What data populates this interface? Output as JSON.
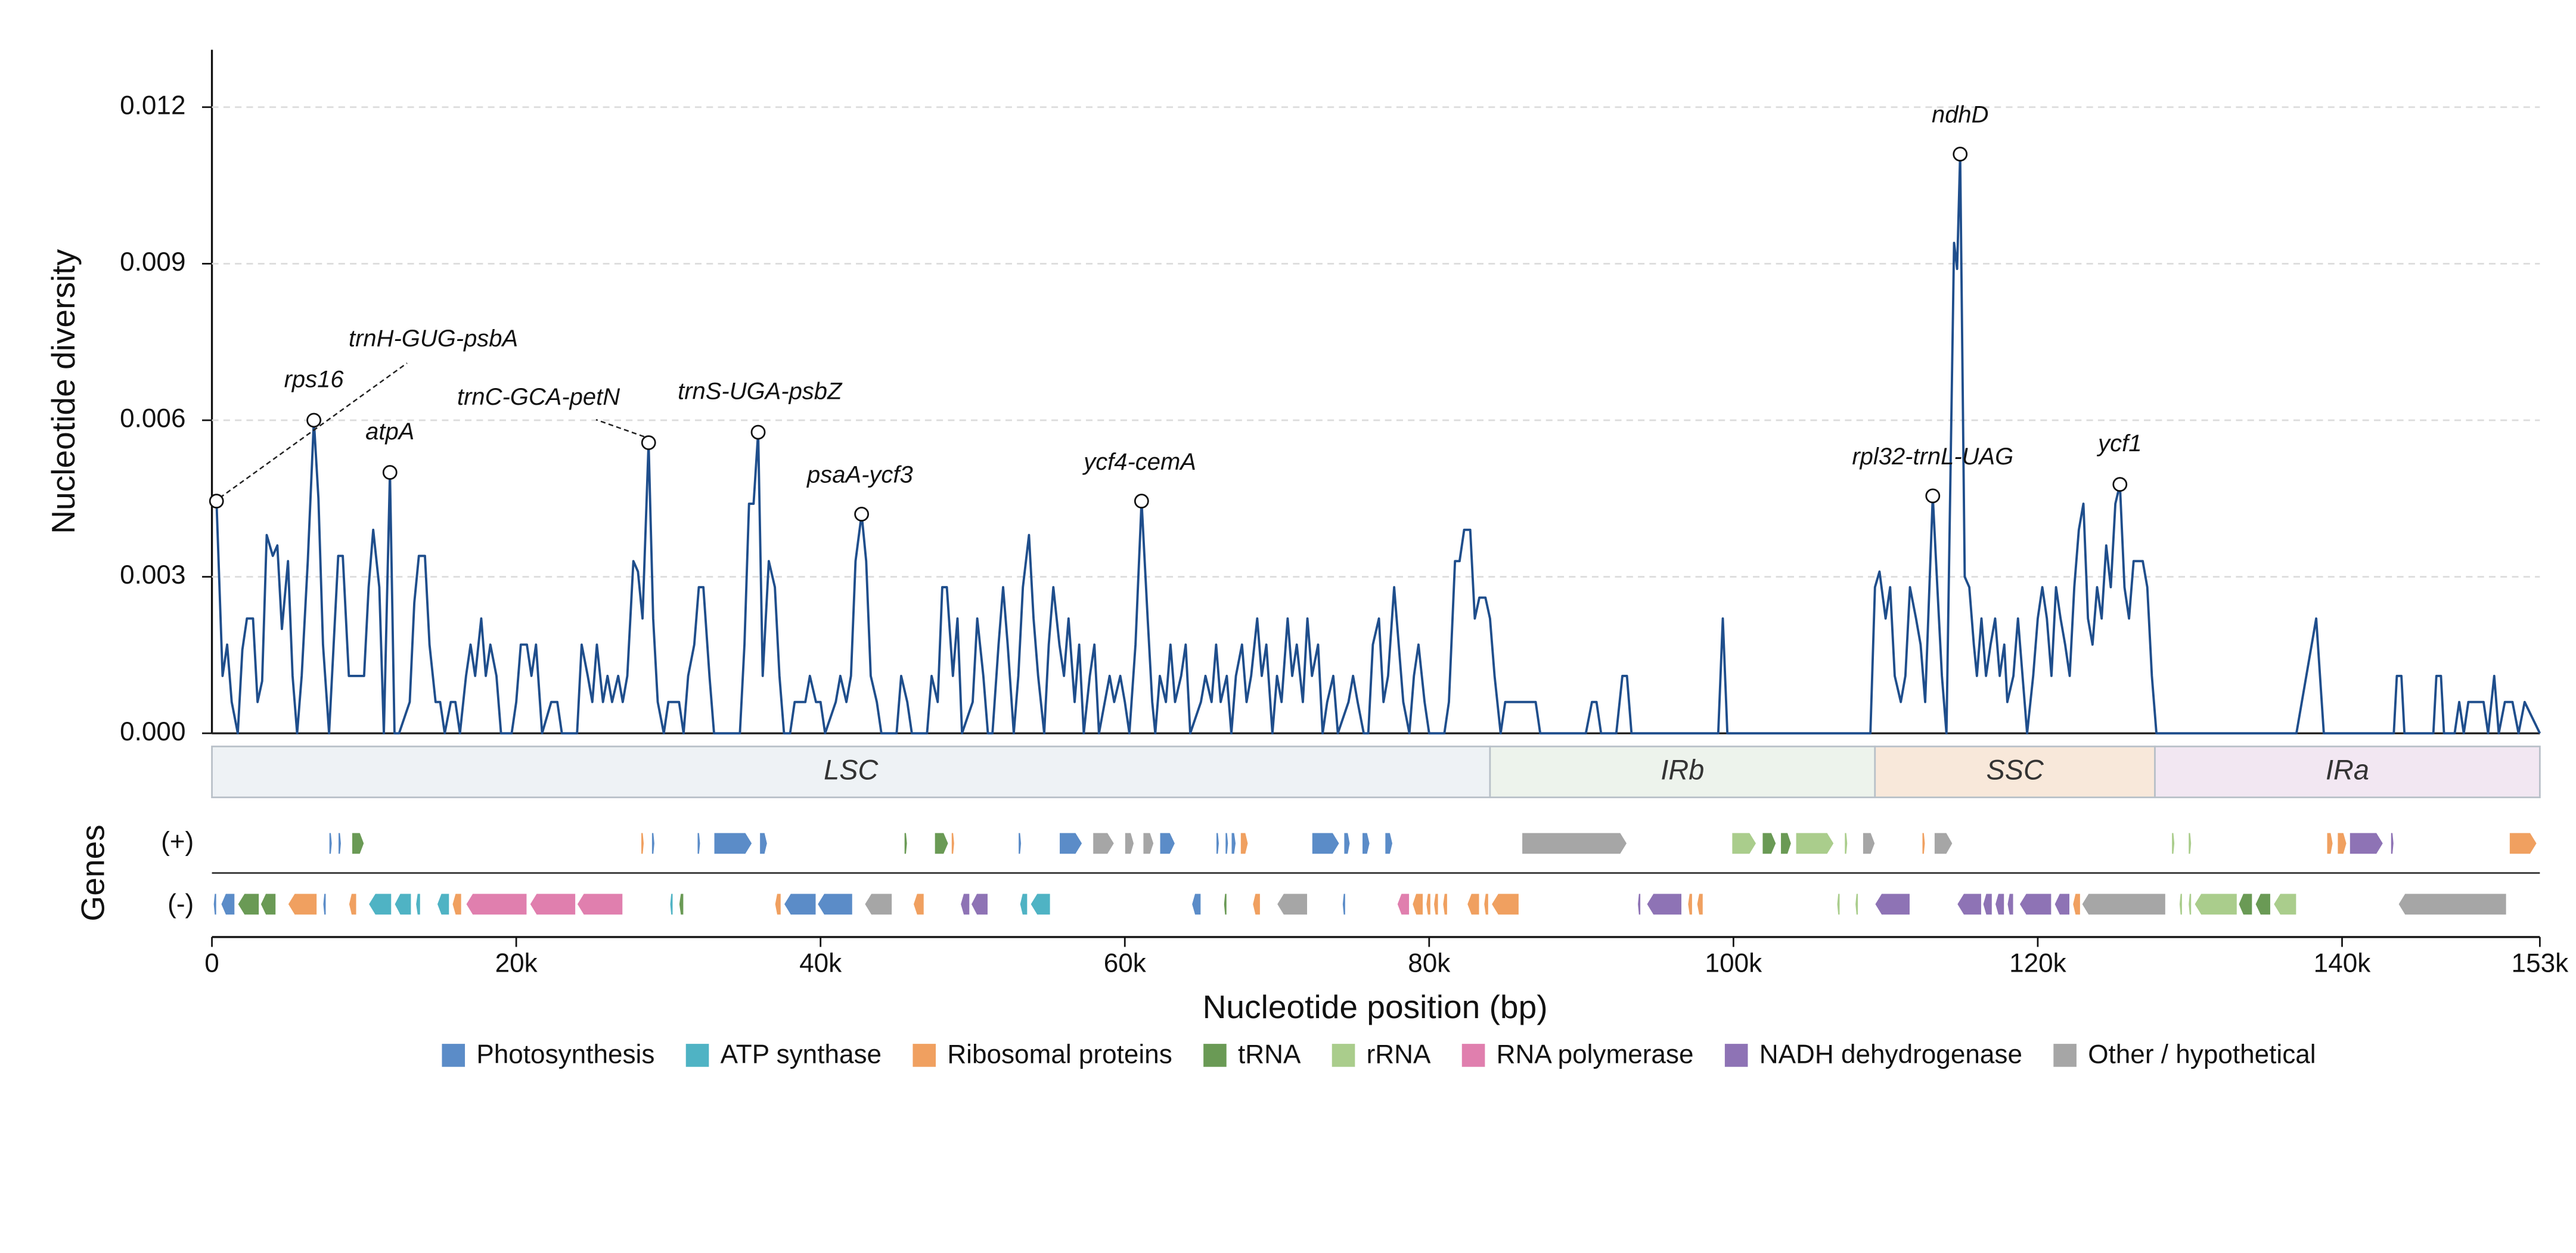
{
  "chart_data": {
    "type": "line",
    "y_label": "Nucleotide diversity",
    "x_label": "Nucleotide position (bp)",
    "track_label": "Genes",
    "strand_labels": {
      "plus": "(+)",
      "minus": "(-)"
    },
    "xlim": [
      0,
      153000
    ],
    "xticks": [
      0,
      {
        "value": 20000,
        "label": "20k"
      },
      {
        "value": 40000,
        "label": "40k"
      },
      {
        "value": 60000,
        "label": "60k"
      },
      {
        "value": 80000,
        "label": "80k"
      },
      {
        "value": 100000,
        "label": "100k"
      },
      {
        "value": 120000,
        "label": "120k"
      },
      {
        "value": 140000,
        "label": "140k"
      },
      {
        "value": 153000,
        "label": "153k"
      }
    ],
    "ylim": [
      0,
      0.0131
    ],
    "yticks": [
      {
        "value": 0,
        "label": "0.000"
      },
      0.003,
      0.006,
      0.009,
      0.012
    ],
    "grid": true,
    "color": "#1f4e8c",
    "x": [
      0,
      300,
      700,
      1000,
      1300,
      1700,
      2000,
      2300,
      2700,
      3000,
      3300,
      3600,
      4000,
      4300,
      4600,
      5000,
      5300,
      5600,
      5900,
      6300,
      6700,
      7000,
      7300,
      7700,
      8000,
      8300,
      8600,
      9000,
      9300,
      10000,
      10300,
      10600,
      11000,
      11300,
      11700,
      12000,
      12300,
      13000,
      13300,
      13600,
      14000,
      14300,
      14700,
      15000,
      15300,
      15700,
      16000,
      16300,
      16700,
      17000,
      17300,
      17700,
      18000,
      18300,
      18700,
      19000,
      19700,
      20000,
      20300,
      20700,
      21000,
      21300,
      21700,
      22300,
      22700,
      23000,
      24000,
      24300,
      24700,
      25000,
      25300,
      25700,
      26000,
      26300,
      26700,
      27000,
      27300,
      27700,
      28000,
      28300,
      28700,
      29000,
      29300,
      29700,
      30000,
      30700,
      31000,
      31300,
      31700,
      32000,
      32300,
      32700,
      33000,
      34700,
      35000,
      35300,
      35600,
      35900,
      36200,
      36600,
      37000,
      37300,
      37600,
      38000,
      38300,
      39000,
      39300,
      39700,
      40000,
      40300,
      41000,
      41300,
      41700,
      42000,
      42300,
      42700,
      43000,
      43300,
      43700,
      44000,
      45000,
      45300,
      45700,
      46000,
      47000,
      47300,
      47700,
      48000,
      48300,
      48700,
      49000,
      49300,
      50000,
      50300,
      50700,
      51000,
      51300,
      51700,
      52000,
      52300,
      52700,
      53000,
      53300,
      53700,
      54000,
      54300,
      54700,
      55000,
      55300,
      55700,
      56000,
      56300,
      56700,
      57000,
      57300,
      57700,
      58000,
      58300,
      59000,
      59300,
      59700,
      60000,
      60300,
      60700,
      61100,
      61500,
      61800,
      62000,
      62300,
      62700,
      63000,
      63300,
      63700,
      64000,
      64300,
      65000,
      65300,
      65700,
      66000,
      66300,
      66700,
      67000,
      67300,
      67700,
      68000,
      68300,
      68700,
      69000,
      69300,
      69700,
      70000,
      70300,
      70700,
      71000,
      71300,
      71700,
      72000,
      72300,
      72700,
      73000,
      73300,
      73700,
      74000,
      74700,
      75000,
      75300,
      75700,
      76000,
      76300,
      76700,
      77000,
      77300,
      77700,
      78000,
      78300,
      78700,
      79000,
      79300,
      79700,
      80000,
      81000,
      81300,
      81700,
      82000,
      82300,
      82700,
      83000,
      83300,
      83700,
      84000,
      84300,
      84700,
      85000,
      87000,
      87300,
      90300,
      90700,
      91000,
      91300,
      92300,
      92700,
      93000,
      93300,
      99000,
      99300,
      99600,
      109000,
      109300,
      109600,
      110000,
      110300,
      110600,
      111000,
      111300,
      111600,
      112000,
      112300,
      112600,
      113100,
      113400,
      113700,
      114000,
      114500,
      114700,
      114900,
      115200,
      115500,
      115800,
      116000,
      116300,
      116600,
      116900,
      117200,
      117500,
      117800,
      118000,
      118400,
      118700,
      119000,
      119300,
      119700,
      120000,
      120300,
      120600,
      120900,
      121200,
      121500,
      121800,
      122100,
      122400,
      122700,
      123000,
      123300,
      123600,
      123900,
      124200,
      124500,
      124800,
      125100,
      125400,
      125700,
      126000,
      126300,
      126600,
      126900,
      127200,
      127500,
      127800,
      137000,
      138300,
      138800,
      143400,
      143600,
      143900,
      144100,
      146000,
      146200,
      146500,
      146700,
      147400,
      147700,
      148000,
      148300,
      149300,
      149600,
      150000,
      150300,
      150700,
      151200,
      151600,
      152000,
      153000
    ],
    "values": [
      0.0045,
      0.00445,
      0.0011,
      0.0017,
      0.0006,
      0,
      0.0016,
      0.0022,
      0.0022,
      0.0006,
      0.001,
      0.0038,
      0.0034,
      0.0036,
      0.002,
      0.0033,
      0.0011,
      0,
      0.0011,
      0.0033,
      0.006,
      0.0045,
      0.0017,
      0,
      0.0017,
      0.0034,
      0.0034,
      0.0011,
      0.0011,
      0.0011,
      0.0028,
      0.0039,
      0.0028,
      0,
      0.005,
      0,
      0,
      0.0006,
      0.0025,
      0.0034,
      0.0034,
      0.0017,
      0.0006,
      0.0006,
      0,
      0.0006,
      0.0006,
      0,
      0.0011,
      0.0017,
      0.0011,
      0.0022,
      0.0011,
      0.0017,
      0.0011,
      0,
      0,
      0.0006,
      0.0017,
      0.0017,
      0.0011,
      0.0017,
      0,
      0.0006,
      0.0006,
      0,
      0,
      0.0017,
      0.0011,
      0.0006,
      0.0017,
      0.0006,
      0.0011,
      0.0006,
      0.0011,
      0.0006,
      0.0011,
      0.0033,
      0.0031,
      0.0022,
      0.00557,
      0.0022,
      0.0006,
      0,
      0.0006,
      0.0006,
      0,
      0.0011,
      0.0017,
      0.0028,
      0.0028,
      0.0011,
      0,
      0,
      0.0017,
      0.0044,
      0.0044,
      0.00577,
      0.0011,
      0.0033,
      0.0028,
      0.0011,
      0,
      0,
      0.0006,
      0.0006,
      0.0011,
      0.0006,
      0.0006,
      0,
      0.0006,
      0.0011,
      0.0006,
      0.0011,
      0.0033,
      0.0042,
      0.0033,
      0.0011,
      0.0006,
      0,
      0,
      0.0011,
      0.0006,
      0,
      0,
      0.0011,
      0.0006,
      0.0028,
      0.0028,
      0.0011,
      0.0022,
      0,
      0.0006,
      0.0022,
      0.0011,
      0,
      0,
      0.0017,
      0.0028,
      0.0017,
      0,
      0.0011,
      0.0028,
      0.0038,
      0.0022,
      0.0011,
      0,
      0.0017,
      0.0028,
      0.0017,
      0.0011,
      0.0022,
      0.0006,
      0.0017,
      0,
      0.0011,
      0.0017,
      0,
      0.0011,
      0.0006,
      0.0011,
      0.0006,
      0,
      0.0017,
      0.00445,
      0.0022,
      0.0006,
      0,
      0.0011,
      0.0006,
      0.0017,
      0.0006,
      0.0011,
      0.0017,
      0,
      0.0006,
      0.0011,
      0.0006,
      0.0017,
      0.0006,
      0.0011,
      0,
      0.0011,
      0.0017,
      0.0006,
      0.0011,
      0.0022,
      0.0011,
      0.0017,
      0,
      0.0011,
      0.0006,
      0.0022,
      0.0011,
      0.0017,
      0.0006,
      0.0022,
      0.0011,
      0.0017,
      0,
      0.0006,
      0.0011,
      0,
      0.0006,
      0.0011,
      0.0006,
      0,
      0,
      0.0017,
      0.0022,
      0.0006,
      0.0011,
      0.0028,
      0.0017,
      0.0006,
      0,
      0.0011,
      0.0017,
      0.0006,
      0,
      0,
      0.0006,
      0.0033,
      0.0033,
      0.0039,
      0.0039,
      0.0022,
      0.0026,
      0.0026,
      0.0022,
      0.0011,
      0,
      0.0006,
      0.0006,
      0,
      0,
      0.0006,
      0.0006,
      0,
      0,
      0.0011,
      0.0011,
      0,
      0,
      0.0022,
      0,
      0,
      0.0028,
      0.0031,
      0.0022,
      0.0028,
      0.0011,
      0.0006,
      0.0011,
      0.0028,
      0.0022,
      0.0017,
      0.0006,
      0.00455,
      0.0028,
      0.0011,
      0,
      0.0094,
      0.0089,
      0.0111,
      0.003,
      0.0028,
      0.0017,
      0.0011,
      0.0022,
      0.0011,
      0.0017,
      0.0022,
      0.0011,
      0.0017,
      0.0006,
      0.0011,
      0.0022,
      0.0011,
      0,
      0.0011,
      0.0022,
      0.0028,
      0.0022,
      0.0011,
      0.0028,
      0.0022,
      0.0017,
      0.0011,
      0.0028,
      0.0039,
      0.0044,
      0.0022,
      0.0017,
      0.0028,
      0.0022,
      0.0036,
      0.0028,
      0.0044,
      0.00477,
      0.0028,
      0.0022,
      0.0033,
      0.0033,
      0.0033,
      0.0028,
      0.0011,
      0,
      0,
      0.0022,
      0,
      0,
      0.0011,
      0.0011,
      0,
      0,
      0.0011,
      0.0011,
      0,
      0,
      0.0006,
      0,
      0.0006,
      0.0006,
      0,
      0.0011,
      0,
      0.0006,
      0.0006,
      0,
      0.0006,
      0
    ],
    "peaks": [
      {
        "label": "trnH-GUG-psbA",
        "x": 300,
        "y": 0.00445
      },
      {
        "label": "rps16",
        "x": 6700,
        "y": 0.006
      },
      {
        "label": "atpA",
        "x": 11700,
        "y": 0.005
      },
      {
        "label": "trnC-GCA-petN",
        "x": 28700,
        "y": 0.00557
      },
      {
        "label": "trnS-UGA-psbZ",
        "x": 35900,
        "y": 0.00577
      },
      {
        "label": "psaA-ycf3",
        "x": 42700,
        "y": 0.0042
      },
      {
        "label": "ycf4-cemA",
        "x": 61100,
        "y": 0.00445
      },
      {
        "label": "ndhD",
        "x": 114900,
        "y": 0.0111
      },
      {
        "label": "rpl32-trnL-UAG",
        "x": 113100,
        "y": 0.00455
      },
      {
        "label": "ycf1",
        "x": 125400,
        "y": 0.00477
      }
    ],
    "regions": [
      {
        "name": "LSC",
        "start": 0,
        "end": 84000,
        "color": "#eef2f5"
      },
      {
        "name": "IRb",
        "start": 84000,
        "end": 109300,
        "color": "#edf3ec"
      },
      {
        "name": "SSC",
        "start": 109300,
        "end": 127700,
        "color": "#f8e8da"
      },
      {
        "name": "IRa",
        "start": 127700,
        "end": 153000,
        "color": "#f2e7f2"
      }
    ],
    "gene_categories": [
      {
        "name": "Photosynthesis",
        "color": "#5b8cc8"
      },
      {
        "name": "ATP synthase",
        "color": "#4fb3c4"
      },
      {
        "name": "Ribosomal proteins",
        "color": "#f0a060"
      },
      {
        "name": "tRNA",
        "color": "#6a9a55"
      },
      {
        "name": "rRNA",
        "color": "#aacd8c"
      },
      {
        "name": "RNA polymerase",
        "color": "#e07fae"
      },
      {
        "name": "NADH dehydrogenase",
        "color": "#8e73b5"
      },
      {
        "name": "Other / hypothetical",
        "color": "#a6a6a6"
      }
    ],
    "genes": {
      "plus": [
        [
          7700,
          7900,
          0
        ],
        [
          8300,
          8500,
          0
        ],
        [
          9200,
          10000,
          3
        ],
        [
          28200,
          28400,
          2
        ],
        [
          28900,
          29100,
          0
        ],
        [
          31900,
          32100,
          0
        ],
        [
          33000,
          35500,
          0
        ],
        [
          36000,
          36500,
          0
        ],
        [
          45500,
          45700,
          3
        ],
        [
          47500,
          48400,
          3
        ],
        [
          48600,
          48800,
          2
        ],
        [
          53000,
          53200,
          0
        ],
        [
          55700,
          57200,
          0
        ],
        [
          57900,
          59300,
          7
        ],
        [
          60000,
          60600,
          7
        ],
        [
          61200,
          61900,
          7
        ],
        [
          62300,
          63300,
          0
        ],
        [
          66000,
          66200,
          0
        ],
        [
          66600,
          66800,
          0
        ],
        [
          67000,
          67300,
          0
        ],
        [
          67600,
          68100,
          2
        ],
        [
          72300,
          74100,
          0
        ],
        [
          74400,
          74800,
          0
        ],
        [
          75600,
          76100,
          0
        ],
        [
          77100,
          77600,
          0
        ],
        [
          86100,
          93000,
          7
        ],
        [
          99900,
          101500,
          4
        ],
        [
          101900,
          102800,
          3
        ],
        [
          103100,
          103800,
          3
        ],
        [
          104100,
          106600,
          4
        ],
        [
          107300,
          107500,
          4
        ],
        [
          108500,
          109300,
          7
        ],
        [
          112400,
          112600,
          2
        ],
        [
          113200,
          114400,
          7
        ],
        [
          128800,
          129000,
          4
        ],
        [
          129900,
          130100,
          4
        ],
        [
          139000,
          139400,
          2
        ],
        [
          139700,
          140300,
          2
        ],
        [
          140500,
          142700,
          6
        ],
        [
          143200,
          143400,
          6
        ],
        [
          151000,
          152800,
          2
        ]
      ],
      "minus": [
        [
          100,
          300,
          0
        ],
        [
          600,
          1500,
          0
        ],
        [
          1700,
          3100,
          3
        ],
        [
          3200,
          4200,
          3
        ],
        [
          5000,
          6900,
          2
        ],
        [
          7300,
          7500,
          0
        ],
        [
          9000,
          9500,
          2
        ],
        [
          10300,
          11800,
          1
        ],
        [
          12000,
          13100,
          1
        ],
        [
          13400,
          13700,
          1
        ],
        [
          14800,
          15600,
          1
        ],
        [
          15800,
          16400,
          2
        ],
        [
          16700,
          20700,
          5
        ],
        [
          20900,
          23900,
          5
        ],
        [
          24000,
          27000,
          5
        ],
        [
          30100,
          30300,
          1
        ],
        [
          30700,
          31000,
          3
        ],
        [
          37000,
          37400,
          2
        ],
        [
          37600,
          39700,
          0
        ],
        [
          39800,
          42100,
          0
        ],
        [
          42900,
          44700,
          7
        ],
        [
          46100,
          46800,
          2
        ],
        [
          49200,
          49800,
          6
        ],
        [
          49900,
          51000,
          6
        ],
        [
          53100,
          53600,
          1
        ],
        [
          53800,
          55100,
          1
        ],
        [
          64400,
          65000,
          0
        ],
        [
          66500,
          66700,
          3
        ],
        [
          68400,
          68900,
          2
        ],
        [
          70000,
          72000,
          7
        ],
        [
          74300,
          74500,
          0
        ],
        [
          77900,
          78700,
          5
        ],
        [
          78900,
          79600,
          2
        ],
        [
          79800,
          80100,
          2
        ],
        [
          80300,
          80600,
          2
        ],
        [
          80900,
          81200,
          2
        ],
        [
          82500,
          83300,
          2
        ],
        [
          83600,
          83900,
          2
        ],
        [
          84100,
          85900,
          2
        ],
        [
          93700,
          93900,
          6
        ],
        [
          94300,
          96600,
          6
        ],
        [
          97000,
          97300,
          2
        ],
        [
          97600,
          98000,
          2
        ],
        [
          106800,
          107000,
          4
        ],
        [
          108000,
          108200,
          4
        ],
        [
          109300,
          111600,
          6
        ],
        [
          114700,
          116300,
          6
        ],
        [
          116400,
          117000,
          6
        ],
        [
          117200,
          117800,
          6
        ],
        [
          118000,
          118400,
          6
        ],
        [
          118800,
          120900,
          6
        ],
        [
          121100,
          122100,
          6
        ],
        [
          122300,
          122800,
          2
        ],
        [
          122900,
          128400,
          7
        ],
        [
          129300,
          129500,
          4
        ],
        [
          129900,
          130100,
          4
        ],
        [
          130300,
          133100,
          4
        ],
        [
          133200,
          134100,
          3
        ],
        [
          134300,
          135300,
          3
        ],
        [
          135500,
          137000,
          4
        ],
        [
          143700,
          150800,
          7
        ]
      ]
    }
  }
}
